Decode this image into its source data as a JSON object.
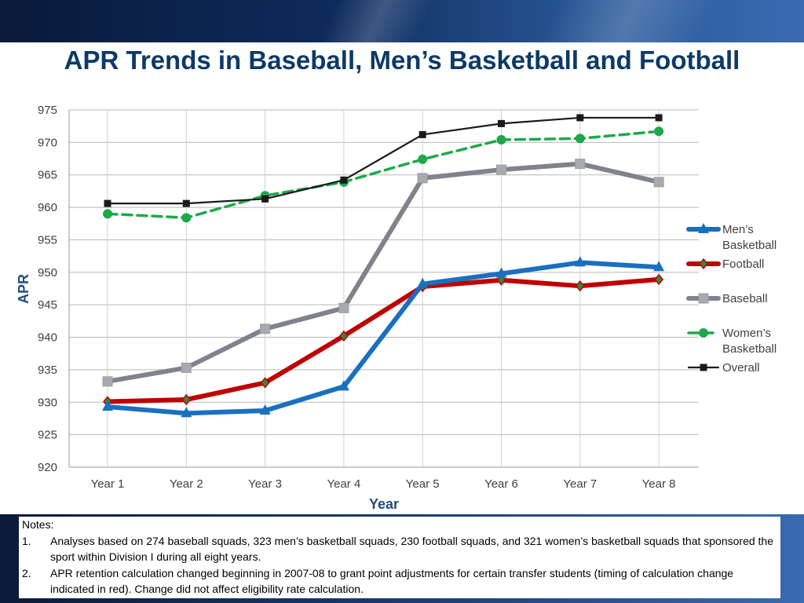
{
  "title": "APR Trends in Baseball, Men’s Basketball and Football",
  "notes": {
    "heading": "Notes:",
    "items": [
      {
        "num": "1.",
        "text": "Analyses based on 274 baseball squads, 323 men’s basketball squads, 230 football squads, and 321 women’s basketball squads that sponsored the sport within Division I during all eight years."
      },
      {
        "num": "2.",
        "text": "APR retention calculation changed  beginning in 2007-08 to grant point adjustments for certain transfer students (timing of calculation change indicated in red). Change did not affect eligibility rate calculation."
      }
    ]
  },
  "chart_data": {
    "type": "line",
    "xlabel": "Year",
    "ylabel": "APR",
    "ylim": [
      920,
      975
    ],
    "ytick_step": 5,
    "grid": true,
    "legend_position": "right",
    "categories": [
      "Year 1",
      "Year 2",
      "Year 3",
      "Year 4",
      "Year 5",
      "Year 6",
      "Year 7",
      "Year 8"
    ],
    "series": [
      {
        "name": "Men’s Basketball",
        "legend_lines": [
          "Men’s",
          "Basketball"
        ],
        "color": "#1a6fc0",
        "marker": "triangle",
        "style": "solid-thick",
        "values": [
          929.3,
          928.3,
          928.7,
          932.4,
          948.2,
          949.8,
          951.5,
          950.8
        ]
      },
      {
        "name": "Football",
        "legend_lines": [
          "Football"
        ],
        "color": "#c00000",
        "marker": "diamond",
        "style": "solid-thick",
        "values": [
          930.1,
          930.4,
          933.0,
          940.2,
          947.8,
          948.8,
          947.9,
          948.9
        ]
      },
      {
        "name": "Baseball",
        "legend_lines": [
          "Baseball"
        ],
        "color": "#80828c",
        "marker": "square",
        "style": "solid-thick",
        "values": [
          933.2,
          935.3,
          941.3,
          944.5,
          964.5,
          965.8,
          966.7,
          963.9
        ]
      },
      {
        "name": "Women’s Basketball",
        "legend_lines": [
          "Women’s",
          "Basketball"
        ],
        "color": "#1ea84a",
        "marker": "circle",
        "style": "dashed",
        "values": [
          959.0,
          958.4,
          961.8,
          963.9,
          967.4,
          970.4,
          970.6,
          971.7
        ]
      },
      {
        "name": "Overall",
        "legend_lines": [
          "Overall"
        ],
        "color": "#1a1a1a",
        "marker": "square-small",
        "style": "solid-thin",
        "values": [
          960.6,
          960.6,
          961.3,
          964.2,
          971.2,
          972.9,
          973.8,
          973.8
        ]
      }
    ]
  }
}
